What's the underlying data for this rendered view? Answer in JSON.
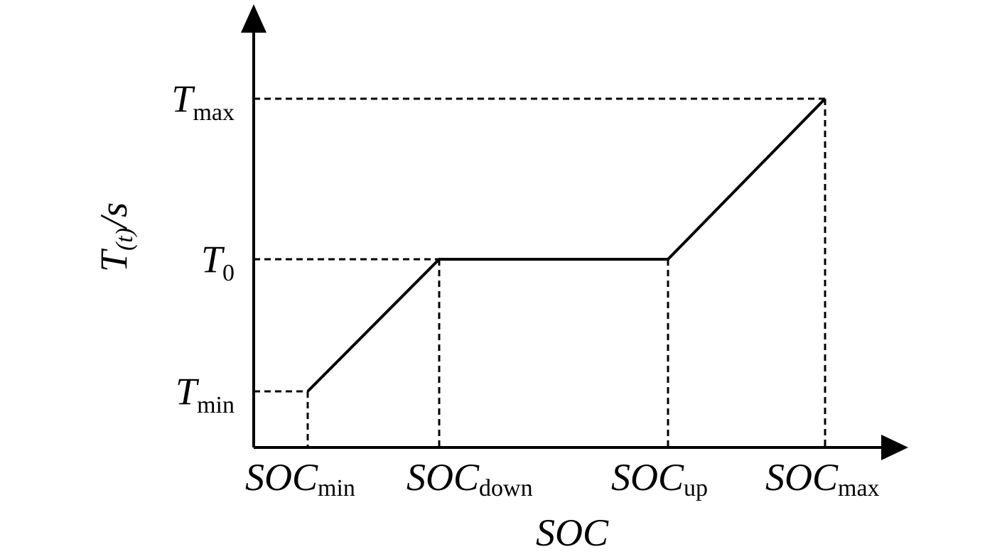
{
  "chart_data": {
    "type": "line",
    "xlabel": "SOC",
    "ylabel": {
      "main": "T",
      "sub": "(t)",
      "unit": "/s"
    },
    "x_ticks": [
      {
        "key": "SOC_min",
        "main": "SOC",
        "sub": "min",
        "value": 1
      },
      {
        "key": "SOC_down",
        "main": "SOC",
        "sub": "down",
        "value": 2
      },
      {
        "key": "SOC_up",
        "main": "SOC",
        "sub": "up",
        "value": 3
      },
      {
        "key": "SOC_max",
        "main": "SOC",
        "sub": "max",
        "value": 4
      }
    ],
    "y_ticks": [
      {
        "key": "T_min",
        "main": "T",
        "sub": "min",
        "value": 1
      },
      {
        "key": "T_0",
        "main": "T",
        "sub": "0",
        "value": 2
      },
      {
        "key": "T_max",
        "main": "T",
        "sub": "max",
        "value": 3
      }
    ],
    "series": [
      {
        "points": [
          {
            "x": "SOC_min",
            "y": "T_min"
          },
          {
            "x": "SOC_down",
            "y": "T_0"
          },
          {
            "x": "SOC_up",
            "y": "T_0"
          },
          {
            "x": "SOC_max",
            "y": "T_max"
          }
        ]
      }
    ],
    "grid": false,
    "guides": "dashed"
  }
}
